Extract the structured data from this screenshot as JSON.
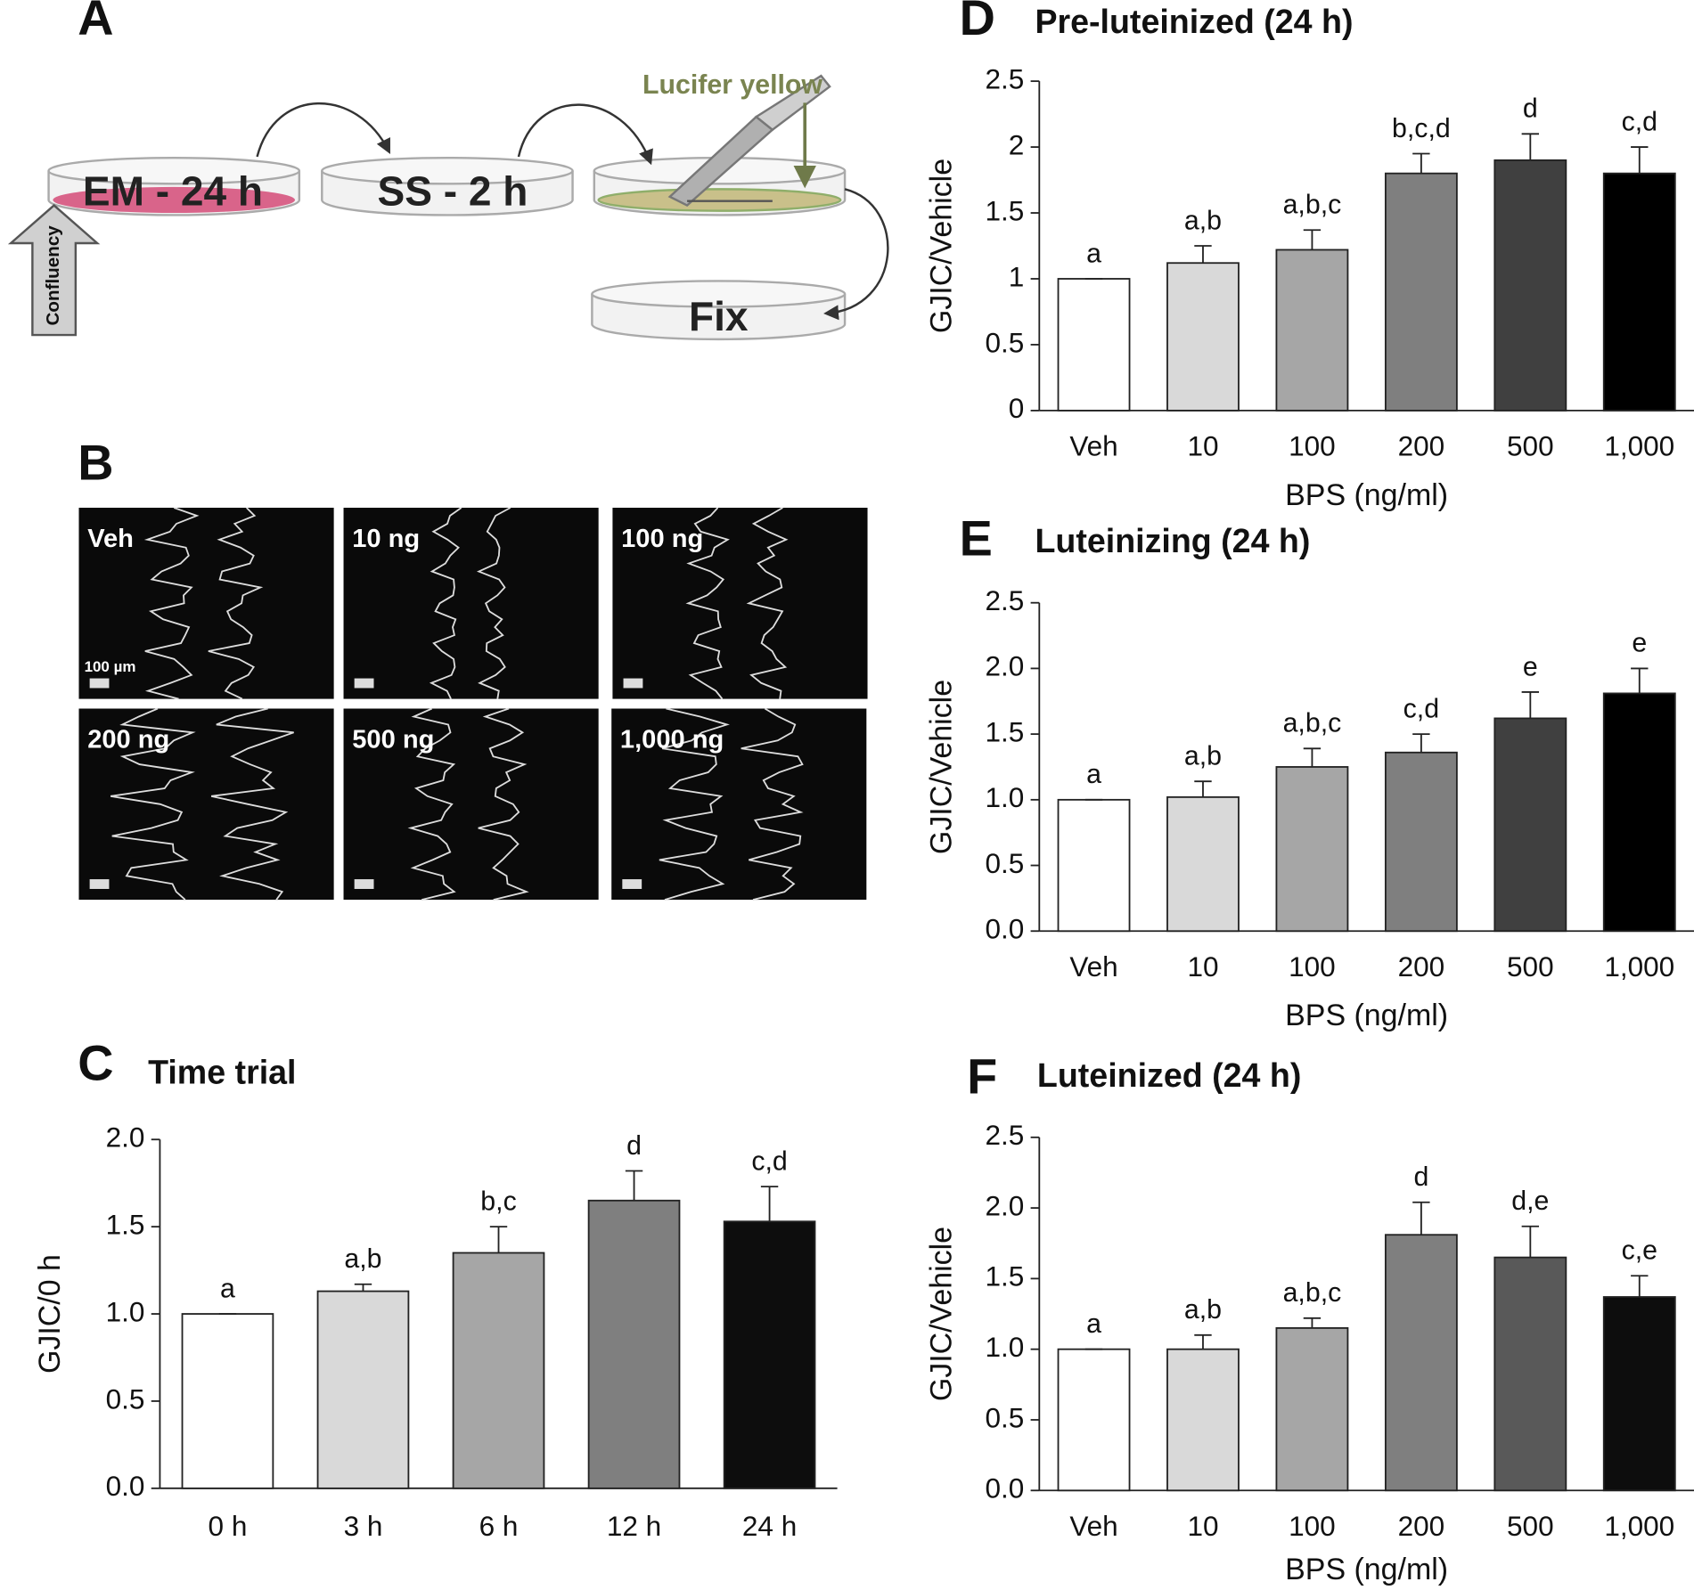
{
  "panel_labels": [
    "A",
    "B",
    "C",
    "D",
    "E",
    "F"
  ],
  "diagram": {
    "steps": [
      "EM - 24 h",
      "SS - 2 h",
      "Fix"
    ],
    "dye": "Lucifer yellow",
    "start": "Confluency"
  },
  "micrographs": {
    "labels": [
      "Veh",
      "10 ng",
      "100 ng",
      "200 ng",
      "500 ng",
      "1,000 ng"
    ],
    "scale_bar": "100 µm"
  },
  "chart_data": [
    {
      "type": "bar",
      "title": "Time trial",
      "ylabel": "GJIC/0 h",
      "categories": [
        "0 h",
        "3 h",
        "6 h",
        "12 h",
        "24 h"
      ],
      "values": [
        1.0,
        1.13,
        1.35,
        1.65,
        1.53
      ],
      "errors": [
        0,
        0.04,
        0.15,
        0.17,
        0.2
      ],
      "letters": [
        "a",
        "a,b",
        "b,c",
        "d",
        "c,d"
      ],
      "colors": [
        "#ffffff",
        "#d9d9d9",
        "#a6a6a6",
        "#7f7f7f",
        "#0d0d0d"
      ],
      "ylim": [
        0,
        2
      ],
      "yticks": [
        {
          "value": 0,
          "label": "0.0"
        },
        {
          "value": 0.5,
          "label": "0.5"
        },
        {
          "value": 1,
          "label": "1.0"
        },
        {
          "value": 1.5,
          "label": "1.5"
        },
        {
          "value": 2,
          "label": "2.0"
        }
      ]
    },
    {
      "type": "bar",
      "title": "Pre-luteinized (24 h)",
      "ylabel": "GJIC/Vehicle",
      "xlabel": "BPS (ng/ml)",
      "categories": [
        "Veh",
        "10",
        "100",
        "200",
        "500",
        "1,000"
      ],
      "values": [
        1.0,
        1.12,
        1.22,
        1.8,
        1.9,
        1.8
      ],
      "errors": [
        0,
        0.13,
        0.15,
        0.15,
        0.2,
        0.2
      ],
      "letters": [
        "a",
        "a,b",
        "a,b,c",
        "b,c,d",
        "d",
        "c,d"
      ],
      "colors": [
        "#ffffff",
        "#d9d9d9",
        "#a6a6a6",
        "#7f7f7f",
        "#404040",
        "#000000"
      ],
      "ylim": [
        0,
        2.5
      ],
      "yticks": [
        0,
        0.5,
        1,
        1.5,
        2,
        2.5
      ]
    },
    {
      "type": "bar",
      "title": "Luteinizing (24 h)",
      "ylabel": "GJIC/Vehicle",
      "xlabel": "BPS (ng/ml)",
      "categories": [
        "Veh",
        "10",
        "100",
        "200",
        "500",
        "1,000"
      ],
      "values": [
        1.0,
        1.02,
        1.25,
        1.36,
        1.62,
        1.81
      ],
      "errors": [
        0,
        0.12,
        0.14,
        0.14,
        0.2,
        0.19
      ],
      "letters": [
        "a",
        "a,b",
        "a,b,c",
        "c,d",
        "e",
        "e"
      ],
      "colors": [
        "#ffffff",
        "#d9d9d9",
        "#a6a6a6",
        "#7f7f7f",
        "#404040",
        "#000000"
      ],
      "ylim": [
        0,
        2.5
      ],
      "yticks": [
        {
          "value": 0,
          "label": "0.0"
        },
        {
          "value": 0.5,
          "label": "0.5"
        },
        {
          "value": 1,
          "label": "1.0"
        },
        {
          "value": 1.5,
          "label": "1.5"
        },
        {
          "value": 2,
          "label": "2.0"
        },
        {
          "value": 2.5,
          "label": "2.5"
        }
      ]
    },
    {
      "type": "bar",
      "title": "Luteinized (24 h)",
      "ylabel": "GJIC/Vehicle",
      "xlabel": "BPS (ng/ml)",
      "categories": [
        "Veh",
        "10",
        "100",
        "200",
        "500",
        "1,000"
      ],
      "values": [
        1.0,
        1.0,
        1.15,
        1.81,
        1.65,
        1.37
      ],
      "errors": [
        0,
        0.1,
        0.07,
        0.23,
        0.22,
        0.15
      ],
      "letters": [
        "a",
        "a,b",
        "a,b,c",
        "d",
        "d,e",
        "c,e"
      ],
      "colors": [
        "#ffffff",
        "#d9d9d9",
        "#a6a6a6",
        "#7f7f7f",
        "#595959",
        "#0d0d0d"
      ],
      "ylim": [
        0,
        2.5
      ],
      "yticks": [
        {
          "value": 0,
          "label": "0.0"
        },
        {
          "value": 0.5,
          "label": "0.5"
        },
        {
          "value": 1,
          "label": "1.0"
        },
        {
          "value": 1.5,
          "label": "1.5"
        },
        {
          "value": 2,
          "label": "2.0"
        },
        {
          "value": 2.5,
          "label": "2.5"
        }
      ]
    }
  ]
}
